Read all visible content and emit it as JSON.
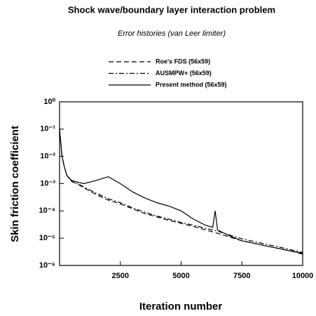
{
  "chart_data": {
    "type": "line",
    "title": "Shock wave/boundary layer interaction problem",
    "subtitle": "Error histories (van Leer limiter)",
    "xlabel": "Iteration number",
    "ylabel": "Skin friction coefficient",
    "x": [
      0,
      100,
      200,
      300,
      500,
      800,
      1000,
      1500,
      2000,
      2500,
      3000,
      3500,
      4000,
      4500,
      5000,
      5500,
      6000,
      6300,
      6400,
      6500,
      7000,
      7500,
      8000,
      8500,
      9000,
      9500,
      10000
    ],
    "series": [
      {
        "name": "Roe's FDS (56x59)",
        "color": "#000000",
        "dash": "dashed",
        "values": [
          0.1,
          0.01,
          0.004,
          0.002,
          0.0012,
          0.0009,
          0.0007,
          0.0004,
          0.00025,
          0.00018,
          0.00012,
          8e-05,
          6e-05,
          4.5e-05,
          3.5e-05,
          2.7e-05,
          2e-05,
          1.7e-05,
          1.6e-05,
          1.5e-05,
          1.1e-05,
          8e-06,
          6.5e-06,
          5.2e-06,
          4.2e-06,
          3.4e-06,
          2.6e-06
        ]
      },
      {
        "name": "AUSMPW+ (56x59)",
        "color": "#000000",
        "dash": "dashdot",
        "values": [
          0.1,
          0.01,
          0.004,
          0.002,
          0.0012,
          0.00095,
          0.00075,
          0.00045,
          0.00028,
          0.0002,
          0.00013,
          9e-05,
          6.5e-05,
          5e-05,
          3.8e-05,
          3e-05,
          2.3e-05,
          2e-05,
          1.9e-05,
          1.8e-05,
          1.3e-05,
          9.5e-06,
          7.5e-06,
          6e-06,
          4.8e-06,
          3.8e-06,
          3e-06
        ]
      },
      {
        "name": "Present method (56x59)",
        "color": "#000000",
        "dash": "solid",
        "values": [
          0.1,
          0.01,
          0.004,
          0.002,
          0.0013,
          0.0011,
          0.001,
          0.0013,
          0.0018,
          0.001,
          0.0005,
          0.0003,
          0.0002,
          0.00015,
          0.0001,
          5e-05,
          3e-05,
          2.5e-05,
          0.0001,
          2e-05,
          1.2e-05,
          8e-06,
          6.5e-06,
          5.2e-06,
          4.2e-06,
          3.4e-06,
          2.8e-06
        ]
      }
    ],
    "xlim": [
      0,
      10000
    ],
    "xticks": [
      2500,
      5000,
      7500,
      10000
    ],
    "ylim": [
      1e-06,
      1
    ],
    "log_y": true,
    "yticks": [
      {
        "value": 1e-06,
        "label": "10⁻⁶"
      },
      {
        "value": 1e-05,
        "label": "10⁻⁵"
      },
      {
        "value": 0.0001,
        "label": "10⁻⁴"
      },
      {
        "value": 0.001,
        "label": "10⁻³"
      },
      {
        "value": 0.01,
        "label": "10⁻²"
      },
      {
        "value": 0.1,
        "label": "10⁻¹"
      },
      {
        "value": 1,
        "label": "10⁰"
      }
    ],
    "legend": "top"
  }
}
